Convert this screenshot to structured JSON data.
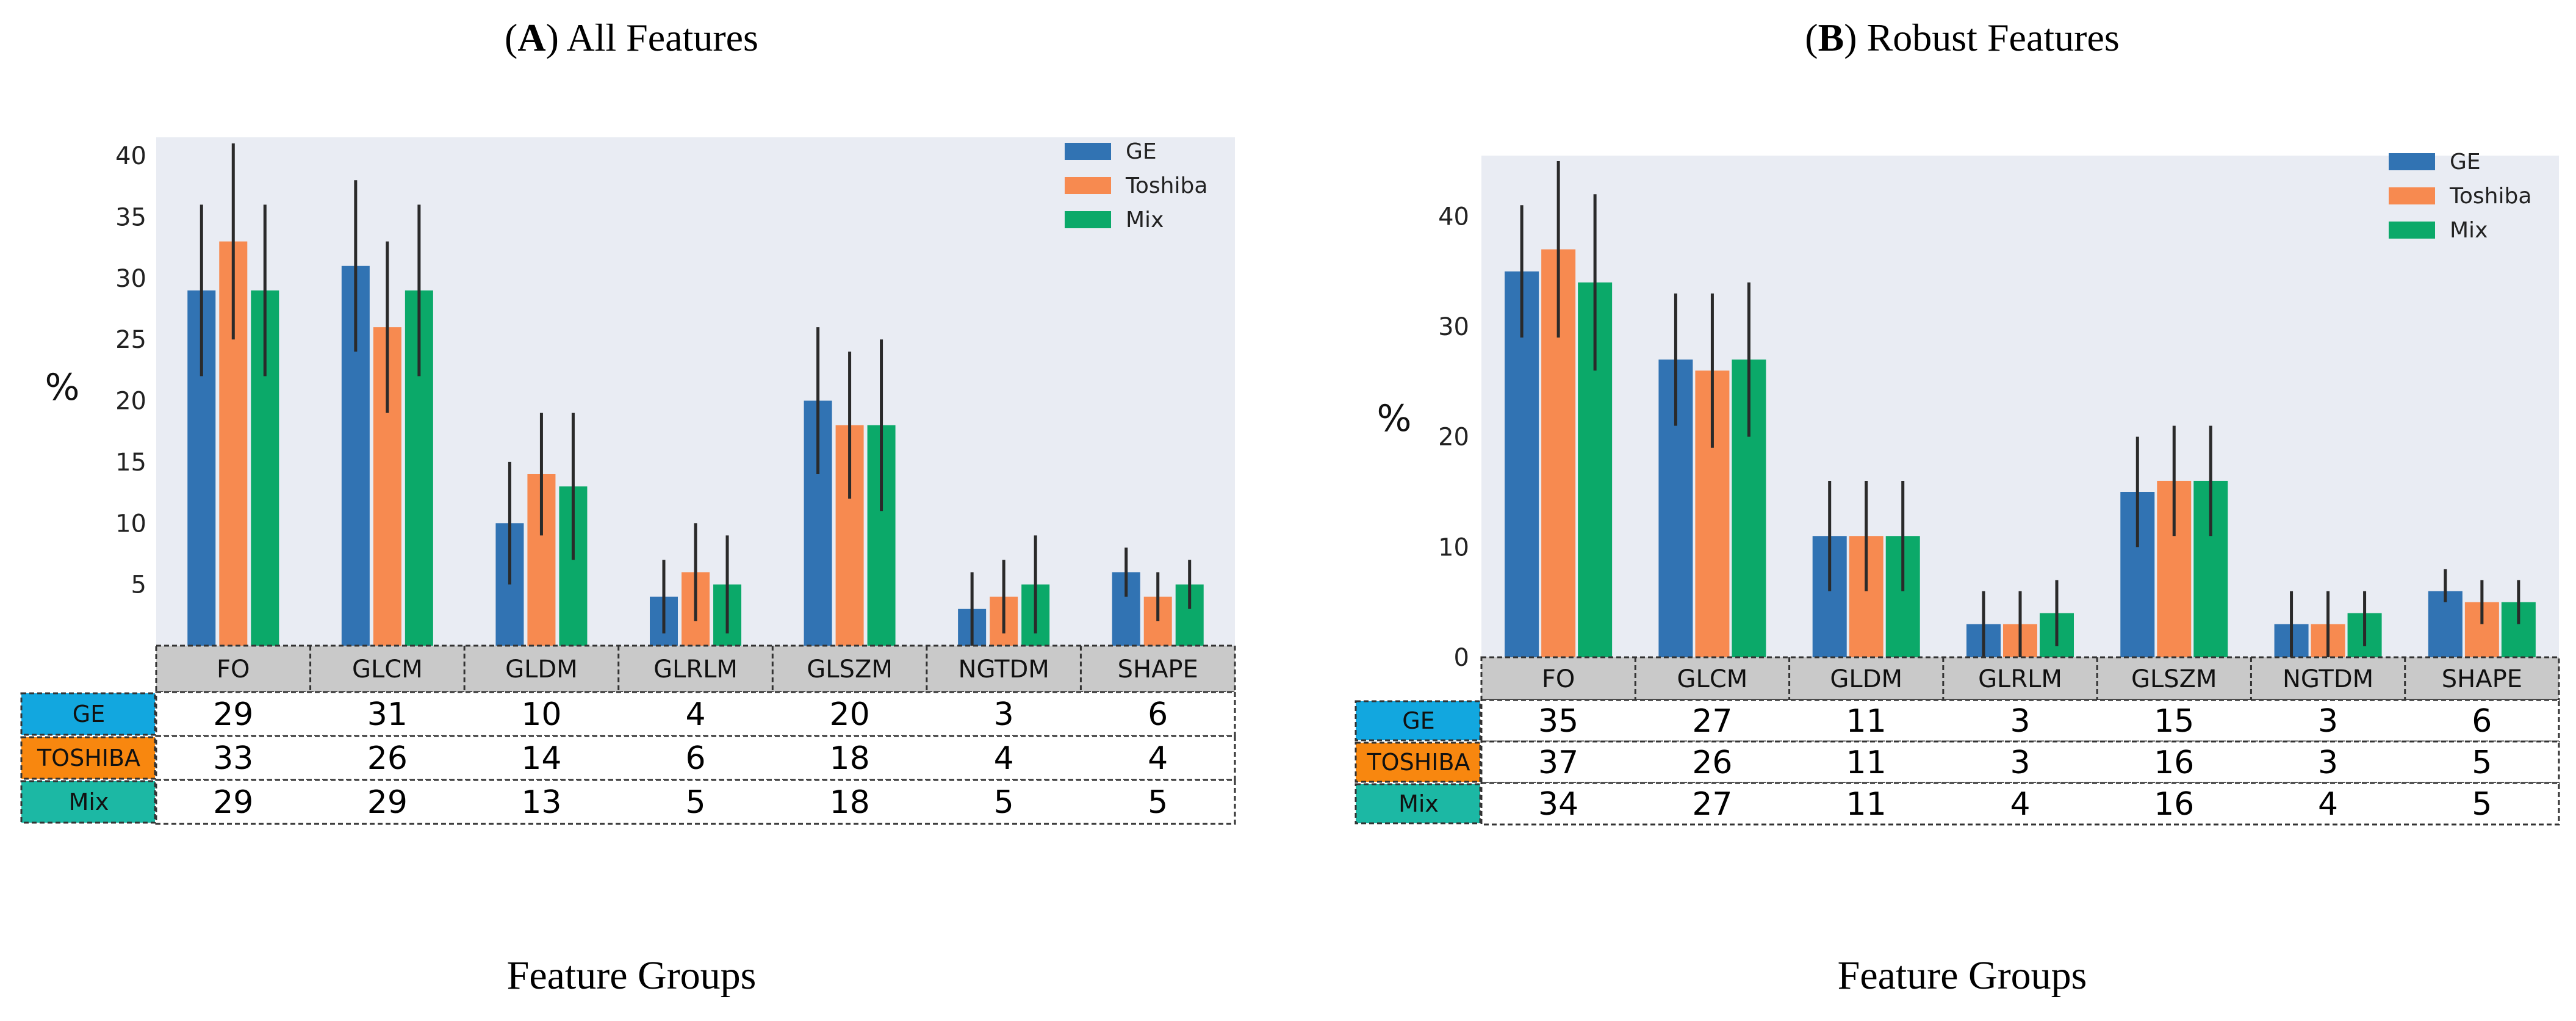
{
  "colors": {
    "GE": "#3173b3",
    "Toshiba": "#f78a50",
    "Mix": "#0ba969",
    "plot_bg": "#e9ecf3",
    "header_bg": "#c9c9c9",
    "row_GE": "#12a7df",
    "row_TOSHIBA": "#f8870f",
    "row_Mix": "#1cb8a4"
  },
  "chart_data": [
    {
      "type": "bar",
      "panel_letter": "A",
      "title": "All Features",
      "xlabel": "Feature Groups",
      "ylabel": "%",
      "categories": [
        "FO",
        "GLCM",
        "GLDM",
        "GLRLM",
        "GLSZM",
        "NGTDM",
        "SHAPE"
      ],
      "series": [
        {
          "name": "GE",
          "values": [
            29,
            31,
            10,
            4,
            20,
            3,
            6
          ],
          "err_low": [
            22,
            24,
            5,
            1,
            14,
            0,
            4
          ],
          "err_high": [
            36,
            38,
            15,
            7,
            26,
            6,
            8
          ]
        },
        {
          "name": "Toshiba",
          "values": [
            33,
            26,
            14,
            6,
            18,
            4,
            4
          ],
          "err_low": [
            25,
            19,
            9,
            2,
            12,
            1,
            2
          ],
          "err_high": [
            41,
            33,
            19,
            10,
            24,
            7,
            6
          ]
        },
        {
          "name": "Mix",
          "values": [
            29,
            29,
            13,
            5,
            18,
            5,
            5
          ],
          "err_low": [
            22,
            22,
            7,
            1,
            11,
            1,
            3
          ],
          "err_high": [
            36,
            36,
            19,
            9,
            25,
            9,
            7
          ]
        }
      ],
      "ylim": [
        0,
        41.5
      ],
      "yticks": [
        5,
        10,
        15,
        20,
        25,
        30,
        35,
        40
      ],
      "legend": "top-right",
      "grid": false,
      "table": {
        "row_labels": [
          "GE",
          "TOSHIBA",
          "Mix"
        ],
        "rows": [
          [
            "29",
            "31",
            "10",
            "4",
            "20",
            "3",
            "6"
          ],
          [
            "33",
            "26",
            "14",
            "6",
            "18",
            "4",
            "4"
          ],
          [
            "29",
            "29",
            "13",
            "5",
            "18",
            "5",
            "5"
          ]
        ]
      }
    },
    {
      "type": "bar",
      "panel_letter": "B",
      "title": "Robust Features",
      "xlabel": "Feature Groups",
      "ylabel": "%",
      "categories": [
        "FO",
        "GLCM",
        "GLDM",
        "GLRLM",
        "GLSZM",
        "NGTDM",
        "SHAPE"
      ],
      "series": [
        {
          "name": "GE",
          "values": [
            35,
            27,
            11,
            3,
            15,
            3,
            6
          ],
          "err_low": [
            29,
            21,
            6,
            0,
            10,
            0,
            5
          ],
          "err_high": [
            41,
            33,
            16,
            6,
            20,
            6,
            8
          ]
        },
        {
          "name": "Toshiba",
          "values": [
            37,
            26,
            11,
            3,
            16,
            3,
            5
          ],
          "err_low": [
            29,
            19,
            6,
            0,
            11,
            0,
            3
          ],
          "err_high": [
            45,
            33,
            16,
            6,
            21,
            6,
            7
          ]
        },
        {
          "name": "Mix",
          "values": [
            34,
            27,
            11,
            4,
            16,
            4,
            5
          ],
          "err_low": [
            26,
            20,
            6,
            1,
            11,
            1,
            3
          ],
          "err_high": [
            42,
            34,
            16,
            7,
            21,
            6,
            7
          ]
        }
      ],
      "ylim": [
        0,
        45.5
      ],
      "yticks": [
        0,
        10,
        20,
        30,
        40
      ],
      "legend": "top-right",
      "grid": false,
      "table": {
        "row_labels": [
          "GE",
          "TOSHIBA",
          "Mix"
        ],
        "rows": [
          [
            "35",
            "27",
            "11",
            "3",
            "15",
            "3",
            "6"
          ],
          [
            "37",
            "26",
            "11",
            "3",
            "16",
            "3",
            "5"
          ],
          [
            "34",
            "27",
            "11",
            "4",
            "16",
            "4",
            "5"
          ]
        ]
      }
    }
  ]
}
